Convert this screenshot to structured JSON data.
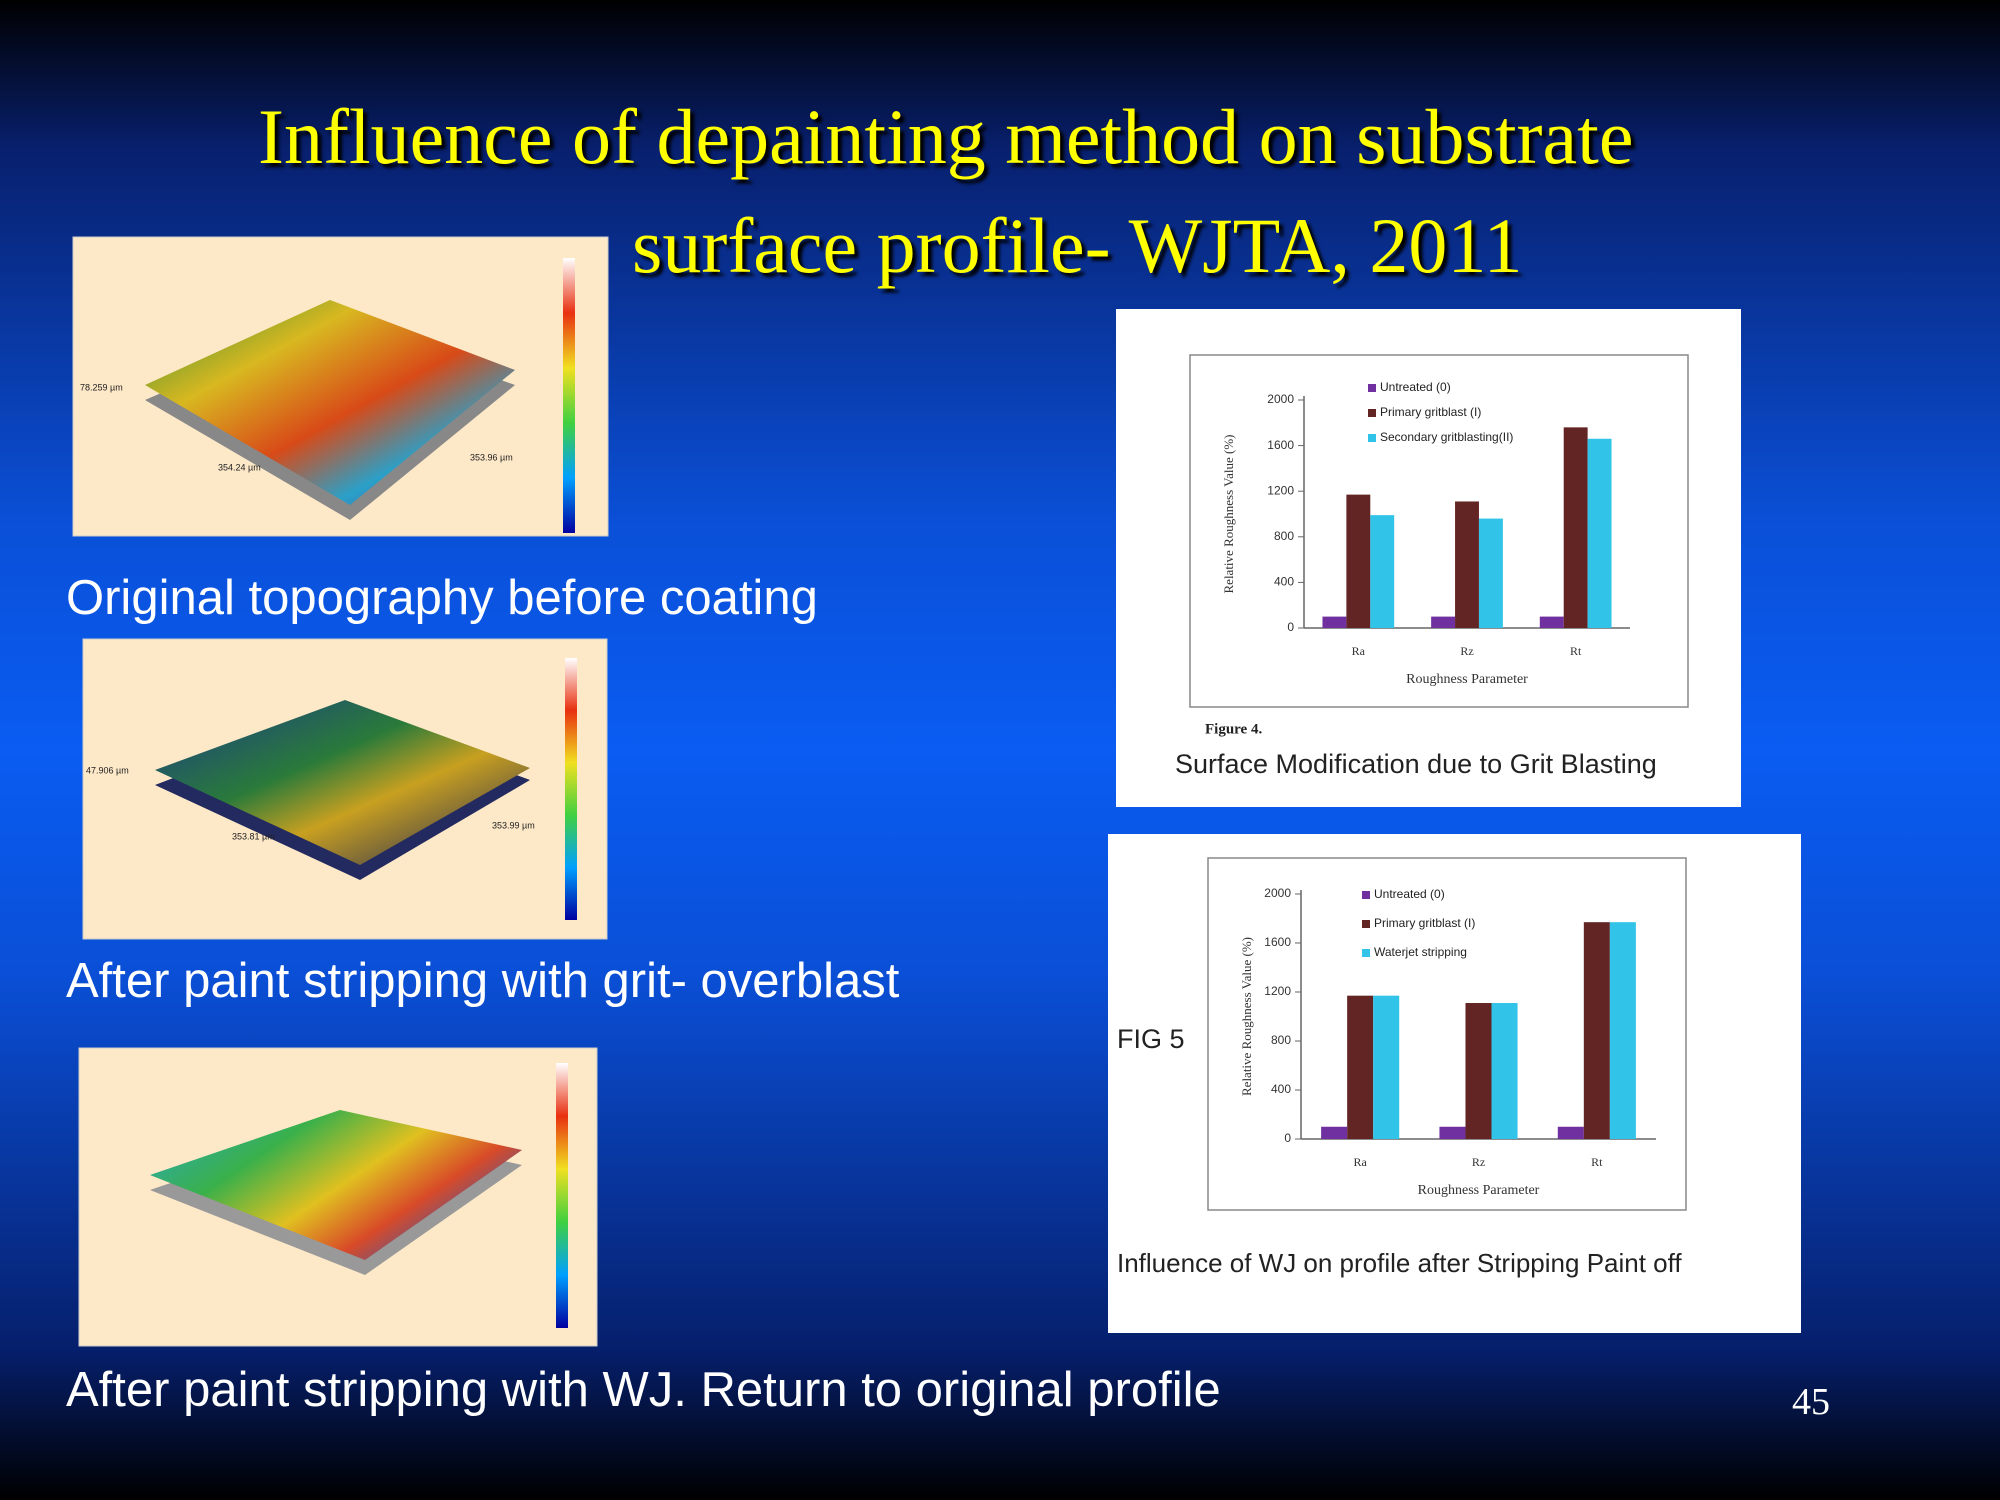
{
  "slide": {
    "title_lines": [
      "Influence of depainting method on substrate",
      "surface profile- WJTA, 2011"
    ],
    "captions": [
      "Original topography before coating",
      "After paint stripping with grit- overblast",
      "After paint stripping with WJ. Return to original profile"
    ],
    "topography_labels": [
      [
        "78.259 µm",
        "354.24 µm",
        "353.96 µm"
      ],
      [
        "47.906 µm",
        "353.81 µm",
        "353.99 µm"
      ]
    ],
    "page_number": "45"
  },
  "chart_data": [
    {
      "type": "bar",
      "figure_label": "Figure 4.",
      "caption": "Surface Modification due to Grit Blasting",
      "y_label": "Relative Roughness Value (%)",
      "x_label": "Roughness Parameter",
      "categories": [
        "Ra",
        "Rz",
        "Rt"
      ],
      "ylim": [
        0,
        2000
      ],
      "yticks": [
        0,
        400,
        800,
        1200,
        1600,
        2000
      ],
      "legend": "upper left",
      "series": [
        {
          "name": "Untreated (0)",
          "color": "#7030a0",
          "values": [
            100,
            100,
            100
          ]
        },
        {
          "name": "Primary gritblast (I)",
          "color": "#632523",
          "values": [
            1170,
            1110,
            1760
          ]
        },
        {
          "name": "Secondary gritblasting(II)",
          "color": "#31c3e8",
          "values": [
            990,
            960,
            1660
          ]
        }
      ]
    },
    {
      "type": "bar",
      "figure_label": "FIG 5",
      "caption": "Influence of WJ on profile after Stripping Paint off",
      "y_label": "Relative Roughness Value (%)",
      "x_label": "Roughness Parameter",
      "categories": [
        "Ra",
        "Rz",
        "Rt"
      ],
      "ylim": [
        0,
        2000
      ],
      "yticks": [
        0,
        400,
        800,
        1200,
        1600,
        2000
      ],
      "legend": "upper left",
      "series": [
        {
          "name": "Untreated (0)",
          "color": "#7030a0",
          "values": [
            100,
            100,
            100
          ]
        },
        {
          "name": "Primary gritblast (I)",
          "color": "#632523",
          "values": [
            1170,
            1110,
            1770
          ]
        },
        {
          "name": "Waterjet stripping",
          "color": "#31c3e8",
          "values": [
            1170,
            1110,
            1770
          ]
        }
      ]
    }
  ]
}
